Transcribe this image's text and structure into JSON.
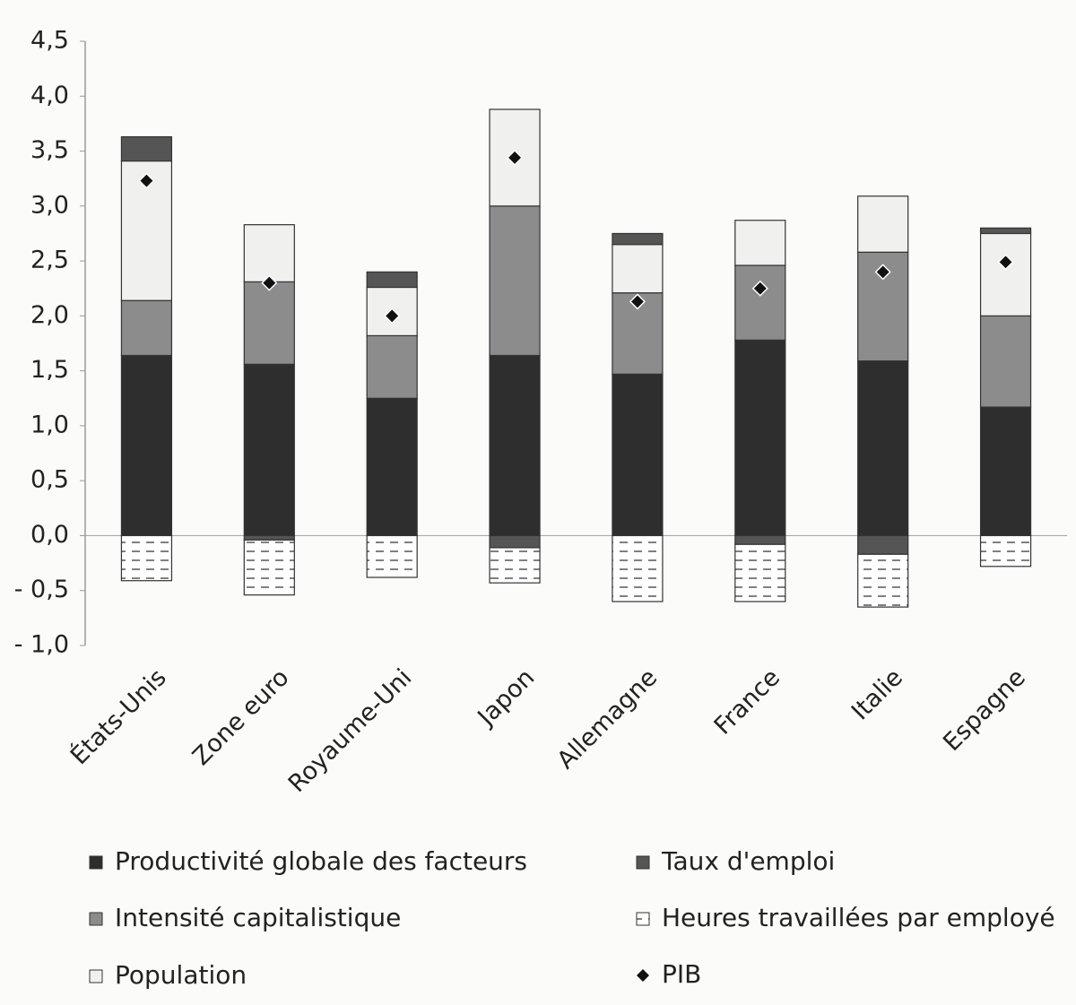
{
  "chart_data": {
    "type": "bar",
    "stacked": true,
    "categories": [
      "États-Unis",
      "Zone euro",
      "Royaume-Uni",
      "Japon",
      "Allemagne",
      "France",
      "Italie",
      "Espagne"
    ],
    "series": [
      {
        "name": "Productivité globale des facteurs",
        "color": "#2e2e2e",
        "values": [
          1.64,
          1.56,
          1.25,
          1.64,
          1.47,
          1.78,
          1.59,
          1.17
        ]
      },
      {
        "name": "Intensité capitalistique",
        "color": "#8c8c8c",
        "values": [
          0.5,
          0.75,
          0.57,
          1.36,
          0.74,
          0.68,
          0.99,
          0.83
        ]
      },
      {
        "name": "Population",
        "color": "#f0f0ee",
        "values": [
          1.27,
          0.52,
          0.44,
          0.88,
          0.44,
          0.41,
          0.51,
          0.75
        ]
      },
      {
        "name": "Taux d'emploi",
        "color": "#555555",
        "values": [
          0.22,
          -0.04,
          0.14,
          -0.11,
          0.1,
          -0.08,
          -0.17,
          0.05
        ]
      },
      {
        "name": "Heures travaillées par employé",
        "color": "#ffffff",
        "pattern": "dashes",
        "values": [
          -0.41,
          -0.5,
          -0.38,
          -0.32,
          -0.6,
          -0.52,
          -0.48,
          -0.28
        ]
      }
    ],
    "markers": {
      "name": "PIB",
      "color": "#111111",
      "values": [
        3.23,
        2.3,
        2.0,
        3.44,
        2.13,
        2.25,
        2.4,
        2.49
      ]
    },
    "ylim": [
      -1.0,
      4.5
    ],
    "yticks": [
      {
        "value": -1.0,
        "label": "- 1,0"
      },
      {
        "value": -0.5,
        "label": "- 0,5"
      },
      {
        "value": 0.0,
        "label": "0,0"
      },
      {
        "value": 0.5,
        "label": "0,5"
      },
      {
        "value": 1.0,
        "label": "1,0"
      },
      {
        "value": 1.5,
        "label": "1,5"
      },
      {
        "value": 2.0,
        "label": "2,0"
      },
      {
        "value": 2.5,
        "label": "2,5"
      },
      {
        "value": 3.0,
        "label": "3,0"
      },
      {
        "value": 3.5,
        "label": "3,5"
      },
      {
        "value": 4.0,
        "label": "4,0"
      },
      {
        "value": 4.5,
        "label": "4,5"
      }
    ],
    "grid": false
  }
}
